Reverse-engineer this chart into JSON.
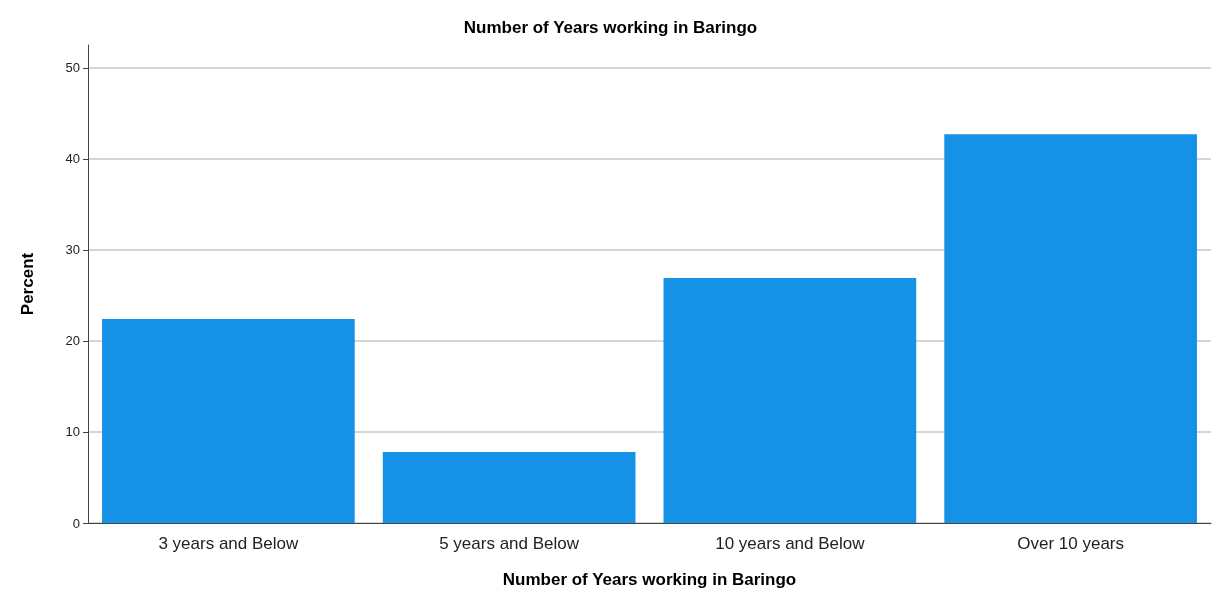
{
  "chart_data": {
    "type": "bar",
    "title": "Number of Years working in Baringo",
    "xlabel": "Number of Years working in Baringo",
    "ylabel": "Percent",
    "categories": [
      "3 years and Below",
      "5 years and Below",
      "10 years and Below",
      "Over 10 years"
    ],
    "values": [
      22.4,
      7.8,
      26.9,
      42.7
    ],
    "color": "#1591e6",
    "ylim": [
      0,
      52.5
    ],
    "yticks": [
      0,
      10,
      20,
      30,
      40,
      50
    ],
    "grid": "y"
  }
}
